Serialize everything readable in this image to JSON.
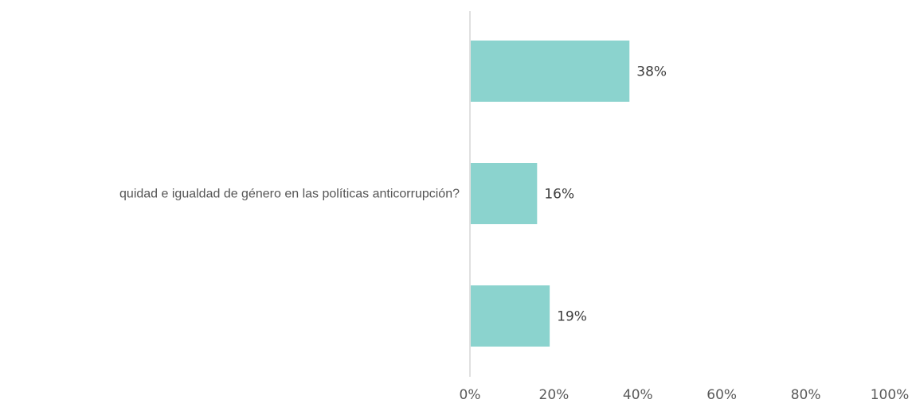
{
  "chart_data": {
    "type": "bar",
    "orientation": "horizontal",
    "categories": [
      "",
      "quidad e igualdad de género en las políticas anticorrupción?",
      ""
    ],
    "values": [
      38,
      16,
      19
    ],
    "value_labels": [
      "38%",
      "16%",
      "19%"
    ],
    "xlim": [
      0,
      100
    ],
    "xticks": [
      0,
      20,
      40,
      60,
      80,
      100
    ],
    "xtick_labels": [
      "0%",
      "20%",
      "40%",
      "60%",
      "80%",
      "100%"
    ],
    "bar_color": "#8bd3ce",
    "axis_color": "#e0e0e0",
    "grid": false,
    "title": "",
    "xlabel": "",
    "ylabel": ""
  }
}
